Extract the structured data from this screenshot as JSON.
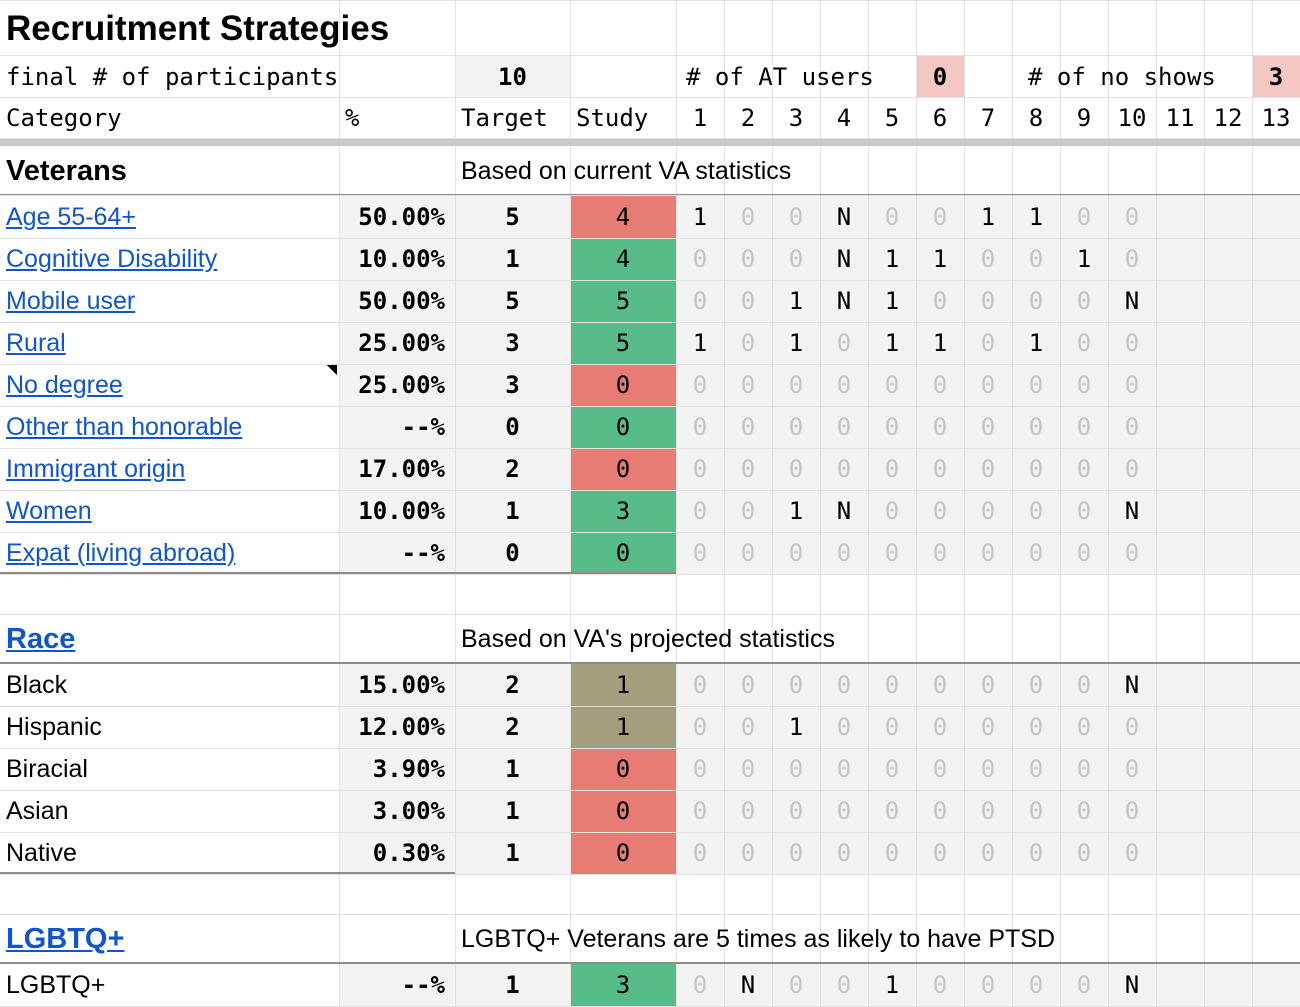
{
  "sheet": {
    "title": "Recruitment Strategies",
    "summary": {
      "final_label": "final # of participants",
      "final_value": "10",
      "at_label": "# of AT users",
      "at_value": "0",
      "noshow_label": "# of no shows",
      "noshow_value": "3"
    },
    "headers": {
      "category": "Category",
      "percent": "%",
      "target": "Target",
      "study": "Study",
      "participants": [
        "1",
        "2",
        "3",
        "4",
        "5",
        "6",
        "7",
        "8",
        "9",
        "10",
        "11",
        "12",
        "13"
      ]
    },
    "colors": {
      "red_fill": "#e67c73",
      "green_fill": "#57bb8a",
      "olive_fill": "#a39e7e",
      "summary_red": "#f4c7c3",
      "header_grey": "#f3f3f3",
      "link": "#1155cc"
    },
    "sections": [
      {
        "name": "Veterans",
        "is_link": false,
        "note": "Based on current VA statistics",
        "rows": [
          {
            "label": "Age 55-64+",
            "link": true,
            "pct": "50.00%",
            "target": "5",
            "study": "4",
            "status": "red",
            "cells": [
              "1",
              "0",
              "0",
              "N",
              "0",
              "0",
              "1",
              "1",
              "0",
              "0"
            ]
          },
          {
            "label": "Cognitive Disability",
            "link": true,
            "pct": "10.00%",
            "target": "1",
            "study": "4",
            "status": "green",
            "cells": [
              "0",
              "0",
              "0",
              "N",
              "1",
              "1",
              "0",
              "0",
              "1",
              "0"
            ]
          },
          {
            "label": "Mobile user",
            "link": true,
            "pct": "50.00%",
            "target": "5",
            "study": "5",
            "status": "green",
            "cells": [
              "0",
              "0",
              "1",
              "N",
              "1",
              "0",
              "0",
              "0",
              "0",
              "N"
            ]
          },
          {
            "label": "Rural",
            "link": true,
            "pct": "25.00%",
            "target": "3",
            "study": "5",
            "status": "green",
            "cells": [
              "1",
              "0",
              "1",
              "0",
              "1",
              "1",
              "0",
              "1",
              "0",
              "0"
            ]
          },
          {
            "label": "No degree",
            "link": true,
            "pct": "25.00%",
            "target": "3",
            "study": "0",
            "status": "red",
            "cells": [
              "0",
              "0",
              "0",
              "0",
              "0",
              "0",
              "0",
              "0",
              "0",
              "0"
            ],
            "comment": true
          },
          {
            "label": "Other than honorable",
            "link": true,
            "pct": "--%",
            "target": "0",
            "study": "0",
            "status": "green",
            "cells": [
              "0",
              "0",
              "0",
              "0",
              "0",
              "0",
              "0",
              "0",
              "0",
              "0"
            ]
          },
          {
            "label": "Immigrant origin",
            "link": true,
            "pct": "17.00%",
            "target": "2",
            "study": "0",
            "status": "red",
            "cells": [
              "0",
              "0",
              "0",
              "0",
              "0",
              "0",
              "0",
              "0",
              "0",
              "0"
            ]
          },
          {
            "label": "Women",
            "link": true,
            "pct": "10.00%",
            "target": "1",
            "study": "3",
            "status": "green",
            "cells": [
              "0",
              "0",
              "1",
              "N",
              "0",
              "0",
              "0",
              "0",
              "0",
              "N"
            ]
          },
          {
            "label": "Expat (living abroad)",
            "link": true,
            "pct": "--%",
            "target": "0",
            "study": "0",
            "status": "green",
            "cells": [
              "0",
              "0",
              "0",
              "0",
              "0",
              "0",
              "0",
              "0",
              "0",
              "0"
            ]
          }
        ]
      },
      {
        "name": "Race",
        "is_link": true,
        "note": "Based on VA's projected statistics",
        "rows": [
          {
            "label": "Black",
            "link": false,
            "pct": "15.00%",
            "target": "2",
            "study": "1",
            "status": "olive",
            "cells": [
              "0",
              "0",
              "0",
              "0",
              "0",
              "0",
              "0",
              "0",
              "0",
              "N"
            ]
          },
          {
            "label": "Hispanic",
            "link": false,
            "pct": "12.00%",
            "target": "2",
            "study": "1",
            "status": "olive",
            "cells": [
              "0",
              "0",
              "1",
              "0",
              "0",
              "0",
              "0",
              "0",
              "0",
              "0"
            ]
          },
          {
            "label": "Biracial",
            "link": false,
            "pct": "3.90%",
            "target": "1",
            "study": "0",
            "status": "red",
            "cells": [
              "0",
              "0",
              "0",
              "0",
              "0",
              "0",
              "0",
              "0",
              "0",
              "0"
            ]
          },
          {
            "label": "Asian",
            "link": false,
            "pct": "3.00%",
            "target": "1",
            "study": "0",
            "status": "red",
            "cells": [
              "0",
              "0",
              "0",
              "0",
              "0",
              "0",
              "0",
              "0",
              "0",
              "0"
            ]
          },
          {
            "label": "Native",
            "link": false,
            "pct": "0.30%",
            "target": "1",
            "study": "0",
            "status": "red",
            "cells": [
              "0",
              "0",
              "0",
              "0",
              "0",
              "0",
              "0",
              "0",
              "0",
              "0"
            ]
          }
        ]
      },
      {
        "name": "LGBTQ+",
        "is_link": true,
        "note": "LGBTQ+ Veterans are 5 times as likely to have PTSD",
        "rows": [
          {
            "label": "LGBTQ+",
            "link": false,
            "pct": "--%",
            "target": "1",
            "study": "3",
            "status": "green",
            "cells": [
              "0",
              "N",
              "0",
              "0",
              "1",
              "0",
              "0",
              "0",
              "0",
              "N"
            ]
          }
        ]
      }
    ]
  }
}
